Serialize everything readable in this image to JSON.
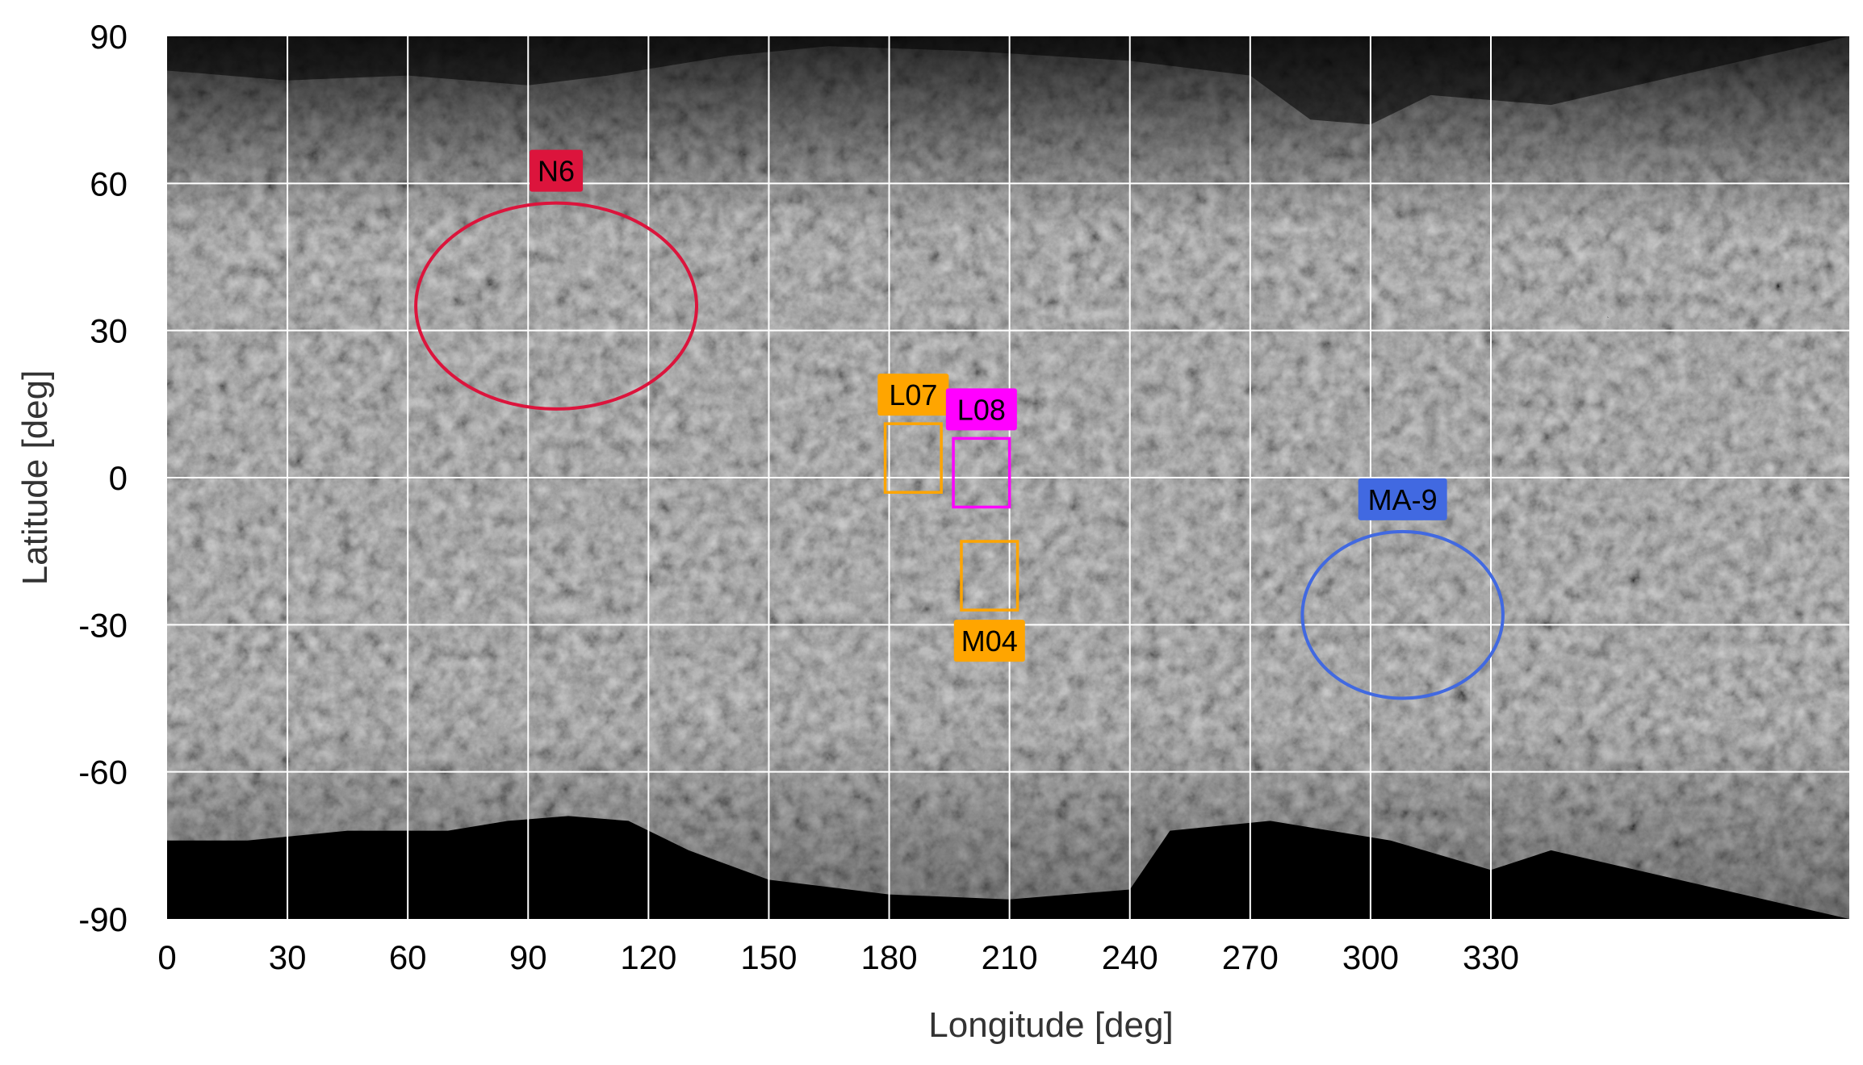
{
  "chart_data": {
    "type": "map",
    "xlabel": "Longitude [deg]",
    "ylabel": "Latitude [deg]",
    "xlim": [
      0,
      345
    ],
    "ylim": [
      -90,
      90
    ],
    "x_ticks": [
      0,
      30,
      60,
      90,
      120,
      150,
      180,
      210,
      240,
      270,
      300,
      330
    ],
    "y_ticks": [
      90,
      60,
      30,
      0,
      -30,
      -60,
      -90
    ],
    "x_tick_labels": [
      "0",
      "30",
      "60",
      "90",
      "120",
      "150",
      "180",
      "210",
      "240",
      "270",
      "300",
      "330"
    ],
    "y_tick_labels": [
      "90",
      "60",
      "30",
      "0",
      "-30",
      "-60",
      "-90"
    ],
    "grid": true,
    "background": "grayscale surface image mosaic",
    "regions": [
      {
        "name": "N6",
        "shape": "ellipse",
        "center_lon": 97,
        "center_lat": 35,
        "radius_lon": 35,
        "radius_lat": 21,
        "color": "#dc143c"
      },
      {
        "name": "L07",
        "shape": "rectangle",
        "lon_range": [
          179,
          193
        ],
        "lat_range": [
          -3,
          11
        ],
        "color": "#ffa500"
      },
      {
        "name": "L08",
        "shape": "rectangle",
        "lon_range": [
          196,
          210
        ],
        "lat_range": [
          -6,
          8
        ],
        "color": "#ff00ff"
      },
      {
        "name": "M04",
        "shape": "rectangle",
        "lon_range": [
          198,
          212
        ],
        "lat_range": [
          -27,
          -13
        ],
        "color": "#ffa500"
      },
      {
        "name": "MA-9",
        "shape": "ellipse",
        "center_lon": 308,
        "center_lat": -28,
        "radius_lon": 25,
        "radius_lat": 17,
        "color": "#4169e1"
      }
    ]
  }
}
